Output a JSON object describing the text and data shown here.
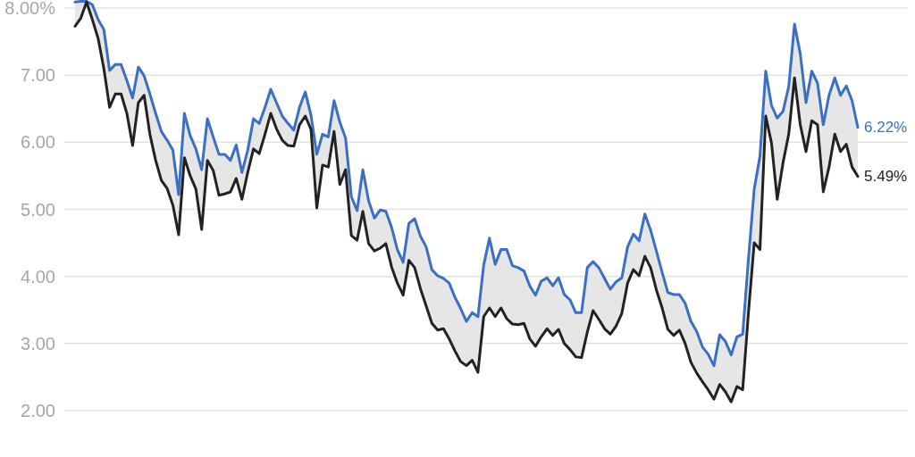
{
  "chart_data": {
    "type": "line",
    "categories": [
      null,
      null,
      null,
      null,
      null,
      null,
      null,
      null,
      null,
      null,
      null,
      null,
      null,
      null,
      null,
      null,
      null,
      null,
      null,
      null,
      null,
      null,
      null,
      null,
      null,
      null,
      null,
      null,
      null,
      null,
      null,
      null,
      null,
      null,
      null,
      null,
      null,
      null,
      null,
      null,
      null,
      null,
      null,
      null,
      null,
      null,
      null,
      null,
      null,
      null,
      null,
      null,
      null,
      null,
      null,
      null,
      null,
      null,
      null,
      null,
      null,
      null,
      null,
      null,
      null,
      null,
      null,
      null,
      null,
      null,
      null,
      null,
      null,
      null,
      null,
      null,
      null,
      null,
      null,
      null,
      null,
      null,
      null,
      null,
      null,
      null,
      null,
      null,
      null,
      null,
      null,
      null,
      null,
      null,
      null,
      null,
      null,
      null,
      null,
      null,
      null,
      null,
      null,
      null,
      null,
      null,
      null,
      null,
      null,
      null,
      null,
      null,
      null,
      null,
      null,
      null,
      null,
      null,
      null,
      null,
      null,
      null,
      null,
      null,
      null,
      null,
      null,
      null,
      null,
      null,
      null,
      null,
      null,
      null,
      null,
      null,
      null
    ],
    "series": [
      {
        "color": "#3b6fc2",
        "values": [
          8.09,
          8.1,
          8.1,
          8.05,
          7.83,
          7.68,
          7.07,
          7.16,
          7.16,
          6.92,
          6.66,
          7.12,
          6.99,
          6.72,
          6.43,
          6.16,
          6.03,
          5.88,
          5.22,
          6.43,
          6.1,
          5.9,
          5.59,
          6.35,
          6.08,
          5.82,
          5.82,
          5.73,
          5.96,
          5.55,
          5.88,
          6.35,
          6.28,
          6.52,
          6.79,
          6.59,
          6.39,
          6.28,
          6.18,
          6.52,
          6.75,
          6.4,
          5.82,
          6.12,
          6.08,
          6.62,
          6.3,
          6.06,
          5.19,
          4.98,
          5.59,
          5.13,
          4.87,
          4.99,
          4.97,
          4.73,
          4.4,
          4.21,
          4.79,
          4.86,
          4.6,
          4.44,
          4.1,
          4.01,
          3.97,
          3.9,
          3.69,
          3.52,
          3.33,
          3.46,
          3.4,
          4.17,
          4.57,
          4.18,
          4.4,
          4.4,
          4.16,
          4.13,
          4.08,
          3.86,
          3.72,
          3.93,
          3.98,
          3.86,
          3.98,
          3.73,
          3.65,
          3.46,
          3.46,
          4.13,
          4.22,
          4.13,
          3.97,
          3.81,
          3.92,
          3.98,
          4.44,
          4.63,
          4.53,
          4.93,
          4.69,
          4.38,
          4.06,
          3.76,
          3.73,
          3.73,
          3.6,
          3.33,
          3.18,
          2.95,
          2.84,
          2.67,
          3.13,
          3.03,
          2.83,
          3.1,
          3.14,
          4.26,
          5.3,
          5.79,
          7.06,
          6.55,
          6.36,
          6.46,
          6.83,
          7.76,
          7.32,
          6.59,
          7.06,
          6.88,
          6.26,
          6.7,
          6.96,
          6.7,
          6.84,
          6.62,
          6.22
        ],
        "lower": [
          7.73,
          7.85,
          8.09,
          7.83,
          7.55,
          7.1,
          6.52,
          6.72,
          6.72,
          6.43,
          5.95,
          6.59,
          6.7,
          6.12,
          5.73,
          5.43,
          5.31,
          5.06,
          4.62,
          5.77,
          5.5,
          5.3,
          4.7,
          5.73,
          5.58,
          5.21,
          5.23,
          5.26,
          5.46,
          5.15,
          5.55,
          5.9,
          5.83,
          6.12,
          6.43,
          6.2,
          6.03,
          5.95,
          5.94,
          6.26,
          6.39,
          6.19,
          5.02,
          5.66,
          5.63,
          6.16,
          5.37,
          5.59,
          4.61,
          4.54,
          4.97,
          4.49,
          4.38,
          4.42,
          4.49,
          4.14,
          3.9,
          3.72,
          4.24,
          4.13,
          3.82,
          3.56,
          3.3,
          3.2,
          3.22,
          3.07,
          2.89,
          2.73,
          2.67,
          2.75,
          2.57,
          3.4,
          3.53,
          3.4,
          3.53,
          3.37,
          3.29,
          3.28,
          3.3,
          3.07,
          2.96,
          3.1,
          3.22,
          3.12,
          3.21,
          3.0,
          2.91,
          2.8,
          2.79,
          3.17,
          3.49,
          3.36,
          3.22,
          3.14,
          3.26,
          3.45,
          3.9,
          4.1,
          4.01,
          4.3,
          4.13,
          3.8,
          3.53,
          3.21,
          3.12,
          3.2,
          3.0,
          2.72,
          2.56,
          2.43,
          2.31,
          2.17,
          2.39,
          2.28,
          2.13,
          2.36,
          2.31,
          3.46,
          4.5,
          4.4,
          6.39,
          5.99,
          5.15,
          5.69,
          6.12,
          6.96,
          6.26,
          5.86,
          6.32,
          6.26,
          5.26,
          5.63,
          6.12,
          5.86,
          5.97,
          5.63,
          5.49
        ],
        "upper": [
          8.09,
          8.1,
          8.1,
          8.05,
          7.83,
          7.68,
          7.07,
          7.16,
          7.16,
          6.92,
          6.66,
          7.12,
          6.99,
          6.72,
          6.43,
          6.16,
          6.03,
          5.88,
          5.22,
          6.43,
          6.1,
          5.9,
          5.59,
          6.35,
          6.08,
          5.82,
          5.82,
          5.73,
          5.96,
          5.55,
          5.88,
          6.35,
          6.28,
          6.52,
          6.79,
          6.59,
          6.39,
          6.28,
          6.18,
          6.52,
          6.75,
          6.4,
          5.82,
          6.12,
          6.08,
          6.62,
          6.3,
          6.06,
          5.19,
          4.98,
          5.59,
          5.13,
          4.87,
          4.99,
          4.97,
          4.73,
          4.4,
          4.21,
          4.79,
          4.86,
          4.6,
          4.44,
          4.1,
          4.01,
          3.97,
          3.9,
          3.69,
          3.52,
          3.33,
          3.46,
          3.4,
          4.17,
          4.57,
          4.18,
          4.4,
          4.4,
          4.16,
          4.13,
          4.08,
          3.86,
          3.72,
          3.93,
          3.98,
          3.86,
          3.98,
          3.73,
          3.65,
          3.46,
          3.46,
          4.13,
          4.22,
          4.13,
          3.97,
          3.81,
          3.92,
          3.98,
          4.44,
          4.63,
          4.53,
          4.93,
          4.69,
          4.38,
          4.06,
          3.76,
          3.73,
          3.73,
          3.6,
          3.33,
          3.18,
          2.95,
          2.84,
          2.67,
          3.13,
          3.03,
          2.83,
          3.1,
          3.14,
          4.26,
          5.3,
          5.79,
          7.06,
          6.55,
          6.36,
          6.46,
          6.83,
          7.76,
          7.32,
          6.59,
          7.06,
          6.88,
          6.26,
          6.7,
          6.96,
          6.7,
          6.84,
          6.62,
          6.22
        ]
      },
      {
        "color": "#222222",
        "values": [
          7.73,
          7.85,
          8.09,
          7.83,
          7.55,
          7.1,
          6.52,
          6.72,
          6.72,
          6.43,
          5.95,
          6.59,
          6.7,
          6.12,
          5.73,
          5.43,
          5.31,
          5.06,
          4.62,
          5.77,
          5.5,
          5.3,
          4.7,
          5.73,
          5.58,
          5.21,
          5.23,
          5.26,
          5.46,
          5.15,
          5.55,
          5.9,
          5.83,
          6.12,
          6.43,
          6.2,
          6.03,
          5.95,
          5.94,
          6.26,
          6.39,
          6.19,
          5.02,
          5.66,
          5.63,
          6.16,
          5.37,
          5.59,
          4.61,
          4.54,
          4.97,
          4.49,
          4.38,
          4.42,
          4.49,
          4.14,
          3.9,
          3.72,
          4.24,
          4.13,
          3.82,
          3.56,
          3.3,
          3.2,
          3.22,
          3.07,
          2.89,
          2.73,
          2.67,
          2.75,
          2.57,
          3.4,
          3.53,
          3.4,
          3.53,
          3.37,
          3.29,
          3.28,
          3.3,
          3.07,
          2.96,
          3.1,
          3.22,
          3.12,
          3.21,
          3.0,
          2.91,
          2.8,
          2.79,
          3.17,
          3.49,
          3.36,
          3.22,
          3.14,
          3.26,
          3.45,
          3.9,
          4.1,
          4.01,
          4.3,
          4.13,
          3.8,
          3.53,
          3.21,
          3.12,
          3.2,
          3.0,
          2.72,
          2.56,
          2.43,
          2.31,
          2.17,
          2.39,
          2.28,
          2.13,
          2.36,
          2.31,
          3.46,
          4.5,
          4.4,
          6.39,
          5.99,
          5.15,
          5.69,
          6.12,
          6.96,
          6.26,
          5.86,
          6.32,
          6.26,
          5.26,
          5.63,
          6.12,
          5.86,
          5.97,
          5.63,
          5.49
        ]
      }
    ],
    "ylim": [
      2,
      8.12
    ],
    "yticks": [
      {
        "value": 8,
        "label": "8.00%"
      },
      {
        "value": 7,
        "label": "7.00"
      },
      {
        "value": 6,
        "label": "6.00"
      },
      {
        "value": 5,
        "label": "5.00"
      },
      {
        "value": 4,
        "label": "4.00"
      },
      {
        "value": 3,
        "label": "3.00"
      },
      {
        "value": 2,
        "label": "2.00"
      }
    ],
    "grid": "y",
    "tick_labels": "y",
    "annotations": [
      "6.22%",
      "5.49%"
    ]
  }
}
